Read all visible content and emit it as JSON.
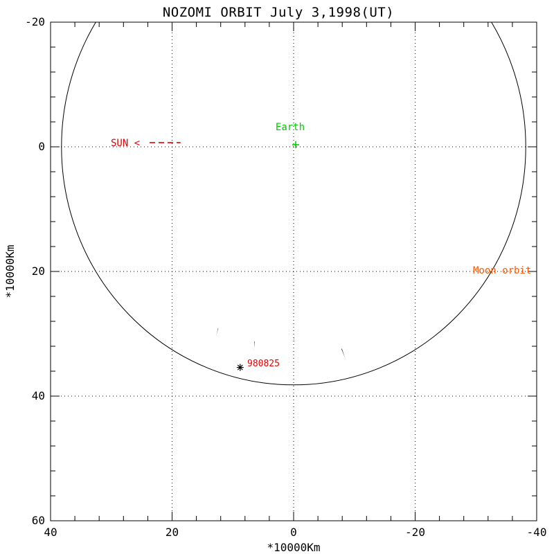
{
  "chart_data": {
    "type": "line",
    "title": "NOZOMI ORBIT July 3,1998(UT)",
    "xlabel": "*10000Km",
    "ylabel": "*10000Km",
    "grid": "dotted",
    "x_axis": {
      "range": [
        40,
        -40
      ],
      "ticks": [
        40,
        20,
        0,
        -20,
        -40
      ],
      "tick_labels": [
        "40",
        "20",
        "0",
        "-20",
        "-40"
      ],
      "minor_step": 4,
      "grid_at": [
        20,
        0,
        -20
      ]
    },
    "y_axis": {
      "range": [
        -20,
        60
      ],
      "ticks": [
        -20,
        0,
        20,
        40,
        60
      ],
      "tick_labels": [
        "-20",
        "0",
        "20",
        "40",
        "60"
      ],
      "minor_step": 4,
      "grid_at": [
        0,
        20,
        40
      ]
    },
    "moon_orbit": {
      "label": "Moon orbit",
      "label_color": "#ff5a00",
      "center": {
        "x": 0,
        "y": 0
      },
      "radius": 38.2,
      "color": "#000000"
    },
    "earth": {
      "label": "Earth",
      "label_color": "#00cc00",
      "marker": "plus",
      "position": {
        "x": -0.34,
        "y": -0.33
      }
    },
    "sun_annotation": {
      "label": "SUN <",
      "color": "#e60000",
      "arrow": "dashed-line-toward-sun",
      "dash_from": {
        "x": 23.7,
        "y": -0.67
      },
      "dash_to": {
        "x": 18.6,
        "y": -0.67
      }
    },
    "nozomi_orbit": {
      "color": "#000000",
      "perigee_dist": 1.0,
      "loop_half_width": 3.8,
      "loops": [
        {
          "apogee": {
            "x": 13.7,
            "y": 46.0
          }
        },
        {
          "apogee": {
            "x": 4.4,
            "y": 48.3
          }
        },
        {
          "apogee": {
            "x": -5.4,
            "y": 45.7
          }
        },
        {
          "apogee": {
            "x": -17.4,
            "y": 48.4
          }
        }
      ]
    },
    "event_marker": {
      "label": "980825",
      "label_color": "#e60000",
      "symbol": "asterisk",
      "symbol_color": "#000000",
      "position": {
        "x": 8.8,
        "y": 35.4
      }
    }
  }
}
